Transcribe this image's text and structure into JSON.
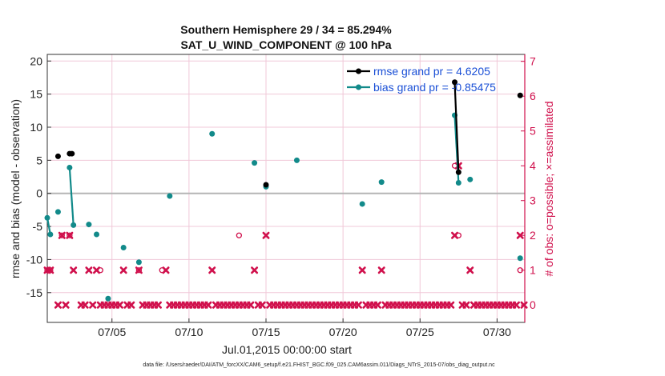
{
  "chart_data": {
    "type": "scatter",
    "title": "Southern Hemisphere 29 / 34 = 85.294%",
    "subtitle": "SAT_U_WIND_COMPONENT @ 100 hPa",
    "xlabel": "Jul.01,2015 00:00:00 start",
    "ylabel": "rmse and bias (model - observation)",
    "y2label": "# of obs: o=possible; ×=assimilated",
    "xlim": [
      0.8,
      31.8
    ],
    "ylim": [
      -19.5,
      21
    ],
    "y2lim": [
      -0.5,
      7.2
    ],
    "xticks": [
      {
        "x": 5,
        "label": "07/05"
      },
      {
        "x": 10,
        "label": "07/10"
      },
      {
        "x": 15,
        "label": "07/15"
      },
      {
        "x": 20,
        "label": "07/20"
      },
      {
        "x": 25,
        "label": "07/25"
      },
      {
        "x": 30,
        "label": "07/30"
      }
    ],
    "yticks": [
      -15,
      -10,
      -5,
      0,
      5,
      10,
      15,
      20
    ],
    "y2ticks": [
      0,
      1,
      2,
      3,
      4,
      5,
      6,
      7
    ],
    "legend": {
      "rmse": "rmse grand pr = 4.6205",
      "bias": "bias grand pr = -0.85475"
    },
    "colors": {
      "rmse": "#000000",
      "bias": "#128a8a",
      "obs": "#d0104c",
      "zero": "#b5b5b5",
      "grid": "#f0c8d8"
    },
    "rmse": [
      {
        "x": 1.5,
        "y": 5.6
      },
      {
        "x": 2.25,
        "y": 6.0
      },
      {
        "x": 2.4,
        "y": 6.0
      },
      {
        "x": 15.0,
        "y": 1.3
      },
      {
        "x": 27.25,
        "y": 16.8
      },
      {
        "x": 27.5,
        "y": 3.2
      },
      {
        "x": 31.5,
        "y": 14.8
      }
    ],
    "rmse_lines": [
      [
        {
          "x": 27.25,
          "y": 16.8
        },
        {
          "x": 27.5,
          "y": 3.2
        }
      ]
    ],
    "bias": [
      {
        "x": 0.8,
        "y": -3.7
      },
      {
        "x": 1.0,
        "y": -6.2
      },
      {
        "x": 1.5,
        "y": -2.8
      },
      {
        "x": 2.25,
        "y": 3.9
      },
      {
        "x": 2.5,
        "y": -4.8
      },
      {
        "x": 3.5,
        "y": -4.7
      },
      {
        "x": 4.0,
        "y": -6.2
      },
      {
        "x": 4.75,
        "y": -15.9
      },
      {
        "x": 5.75,
        "y": -8.2
      },
      {
        "x": 6.75,
        "y": -10.4
      },
      {
        "x": 8.75,
        "y": -0.4
      },
      {
        "x": 11.5,
        "y": 9.0
      },
      {
        "x": 14.25,
        "y": 4.6
      },
      {
        "x": 15.0,
        "y": 1.0
      },
      {
        "x": 17.0,
        "y": 5.0
      },
      {
        "x": 21.25,
        "y": -1.6
      },
      {
        "x": 22.5,
        "y": 1.7
      },
      {
        "x": 27.25,
        "y": 11.8
      },
      {
        "x": 27.5,
        "y": 1.6
      },
      {
        "x": 28.25,
        "y": 2.1
      },
      {
        "x": 31.5,
        "y": -9.8
      }
    ],
    "bias_lines": [
      [
        {
          "x": 0.8,
          "y": -3.7
        },
        {
          "x": 1.0,
          "y": -6.2
        }
      ],
      [
        {
          "x": 2.25,
          "y": 3.9
        },
        {
          "x": 2.5,
          "y": -4.8
        }
      ],
      [
        {
          "x": 27.25,
          "y": 11.8
        },
        {
          "x": 27.5,
          "y": 1.6
        }
      ]
    ],
    "obs_possible": [
      {
        "x": 0.8,
        "n": 1
      },
      {
        "x": 1.0,
        "n": 1
      },
      {
        "x": 1.75,
        "n": 2
      },
      {
        "x": 2.25,
        "n": 2
      },
      {
        "x": 4.25,
        "n": 1
      },
      {
        "x": 6.75,
        "n": 1
      },
      {
        "x": 8.25,
        "n": 1
      },
      {
        "x": 13.25,
        "n": 2
      },
      {
        "x": 27.25,
        "n": 4
      },
      {
        "x": 27.5,
        "n": 2
      },
      {
        "x": 31.5,
        "n": 1
      }
    ],
    "obs_assimilated": [
      {
        "x": 0.8,
        "n": 1
      },
      {
        "x": 1.0,
        "n": 1
      },
      {
        "x": 1.5,
        "n": 0
      },
      {
        "x": 1.75,
        "n": 2
      },
      {
        "x": 2.0,
        "n": 0
      },
      {
        "x": 2.25,
        "n": 2
      },
      {
        "x": 2.5,
        "n": 1
      },
      {
        "x": 3.0,
        "n": 0
      },
      {
        "x": 3.25,
        "n": 0
      },
      {
        "x": 3.5,
        "n": 1
      },
      {
        "x": 3.75,
        "n": 0
      },
      {
        "x": 4.0,
        "n": 1
      },
      {
        "x": 4.25,
        "n": 0
      },
      {
        "x": 4.5,
        "n": 0
      },
      {
        "x": 4.75,
        "n": 0
      },
      {
        "x": 5.0,
        "n": 0
      },
      {
        "x": 5.25,
        "n": 0
      },
      {
        "x": 5.5,
        "n": 0
      },
      {
        "x": 5.75,
        "n": 1
      },
      {
        "x": 6.0,
        "n": 0
      },
      {
        "x": 6.25,
        "n": 0
      },
      {
        "x": 6.75,
        "n": 1
      },
      {
        "x": 7.0,
        "n": 0
      },
      {
        "x": 7.25,
        "n": 0
      },
      {
        "x": 7.5,
        "n": 0
      },
      {
        "x": 7.75,
        "n": 0
      },
      {
        "x": 8.0,
        "n": 0
      },
      {
        "x": 8.5,
        "n": 1
      },
      {
        "x": 8.75,
        "n": 0
      },
      {
        "x": 9.0,
        "n": 0
      },
      {
        "x": 9.25,
        "n": 0
      },
      {
        "x": 9.5,
        "n": 0
      },
      {
        "x": 9.75,
        "n": 0
      },
      {
        "x": 10.0,
        "n": 0
      },
      {
        "x": 10.25,
        "n": 0
      },
      {
        "x": 10.5,
        "n": 0
      },
      {
        "x": 10.75,
        "n": 0
      },
      {
        "x": 11.0,
        "n": 0
      },
      {
        "x": 11.25,
        "n": 0
      },
      {
        "x": 11.5,
        "n": 1
      },
      {
        "x": 11.75,
        "n": 0
      },
      {
        "x": 12.0,
        "n": 0
      },
      {
        "x": 12.25,
        "n": 0
      },
      {
        "x": 12.5,
        "n": 0
      },
      {
        "x": 12.75,
        "n": 0
      },
      {
        "x": 13.0,
        "n": 0
      },
      {
        "x": 13.25,
        "n": 0
      },
      {
        "x": 13.5,
        "n": 0
      },
      {
        "x": 13.75,
        "n": 0
      },
      {
        "x": 14.0,
        "n": 0
      },
      {
        "x": 14.25,
        "n": 1
      },
      {
        "x": 14.5,
        "n": 0
      },
      {
        "x": 14.75,
        "n": 0
      },
      {
        "x": 15.0,
        "n": 2
      },
      {
        "x": 15.25,
        "n": 0
      },
      {
        "x": 15.5,
        "n": 0
      },
      {
        "x": 15.75,
        "n": 0
      },
      {
        "x": 16.0,
        "n": 0
      },
      {
        "x": 16.25,
        "n": 0
      },
      {
        "x": 16.5,
        "n": 0
      },
      {
        "x": 16.75,
        "n": 0
      },
      {
        "x": 17.0,
        "n": 0
      },
      {
        "x": 17.25,
        "n": 0
      },
      {
        "x": 17.5,
        "n": 0
      },
      {
        "x": 17.75,
        "n": 0
      },
      {
        "x": 18.0,
        "n": 0
      },
      {
        "x": 18.25,
        "n": 0
      },
      {
        "x": 18.5,
        "n": 0
      },
      {
        "x": 18.75,
        "n": 0
      },
      {
        "x": 19.0,
        "n": 0
      },
      {
        "x": 19.25,
        "n": 0
      },
      {
        "x": 19.5,
        "n": 0
      },
      {
        "x": 19.75,
        "n": 0
      },
      {
        "x": 20.0,
        "n": 0
      },
      {
        "x": 20.25,
        "n": 0
      },
      {
        "x": 20.5,
        "n": 0
      },
      {
        "x": 20.75,
        "n": 0
      },
      {
        "x": 21.0,
        "n": 0
      },
      {
        "x": 21.25,
        "n": 1
      },
      {
        "x": 21.5,
        "n": 0
      },
      {
        "x": 21.75,
        "n": 0
      },
      {
        "x": 22.0,
        "n": 0
      },
      {
        "x": 22.25,
        "n": 0
      },
      {
        "x": 22.5,
        "n": 1
      },
      {
        "x": 22.75,
        "n": 0
      },
      {
        "x": 23.0,
        "n": 0
      },
      {
        "x": 23.25,
        "n": 0
      },
      {
        "x": 23.5,
        "n": 0
      },
      {
        "x": 23.75,
        "n": 0
      },
      {
        "x": 24.0,
        "n": 0
      },
      {
        "x": 24.25,
        "n": 0
      },
      {
        "x": 24.5,
        "n": 0
      },
      {
        "x": 24.75,
        "n": 0
      },
      {
        "x": 25.0,
        "n": 0
      },
      {
        "x": 25.25,
        "n": 0
      },
      {
        "x": 25.5,
        "n": 0
      },
      {
        "x": 25.75,
        "n": 0
      },
      {
        "x": 26.0,
        "n": 0
      },
      {
        "x": 26.25,
        "n": 0
      },
      {
        "x": 26.5,
        "n": 0
      },
      {
        "x": 26.75,
        "n": 0
      },
      {
        "x": 27.0,
        "n": 0
      },
      {
        "x": 27.25,
        "n": 2
      },
      {
        "x": 27.5,
        "n": 4
      },
      {
        "x": 27.75,
        "n": 0
      },
      {
        "x": 28.0,
        "n": 0
      },
      {
        "x": 28.25,
        "n": 1
      },
      {
        "x": 28.5,
        "n": 0
      },
      {
        "x": 28.75,
        "n": 0
      },
      {
        "x": 29.0,
        "n": 0
      },
      {
        "x": 29.25,
        "n": 0
      },
      {
        "x": 29.5,
        "n": 0
      },
      {
        "x": 29.75,
        "n": 0
      },
      {
        "x": 30.0,
        "n": 0
      },
      {
        "x": 30.25,
        "n": 0
      },
      {
        "x": 30.5,
        "n": 0
      },
      {
        "x": 30.75,
        "n": 0
      },
      {
        "x": 31.0,
        "n": 0
      },
      {
        "x": 31.25,
        "n": 0
      },
      {
        "x": 31.5,
        "n": 2
      },
      {
        "x": 31.75,
        "n": 0
      }
    ]
  },
  "footer": "data file: /Users/raeder/DAI/ATM_forcXX/CAM6_setup/f.e21.FHIST_BGC.f09_025.CAM6assim.011/Diags_NTrS_2015-07/obs_diag_output.nc"
}
